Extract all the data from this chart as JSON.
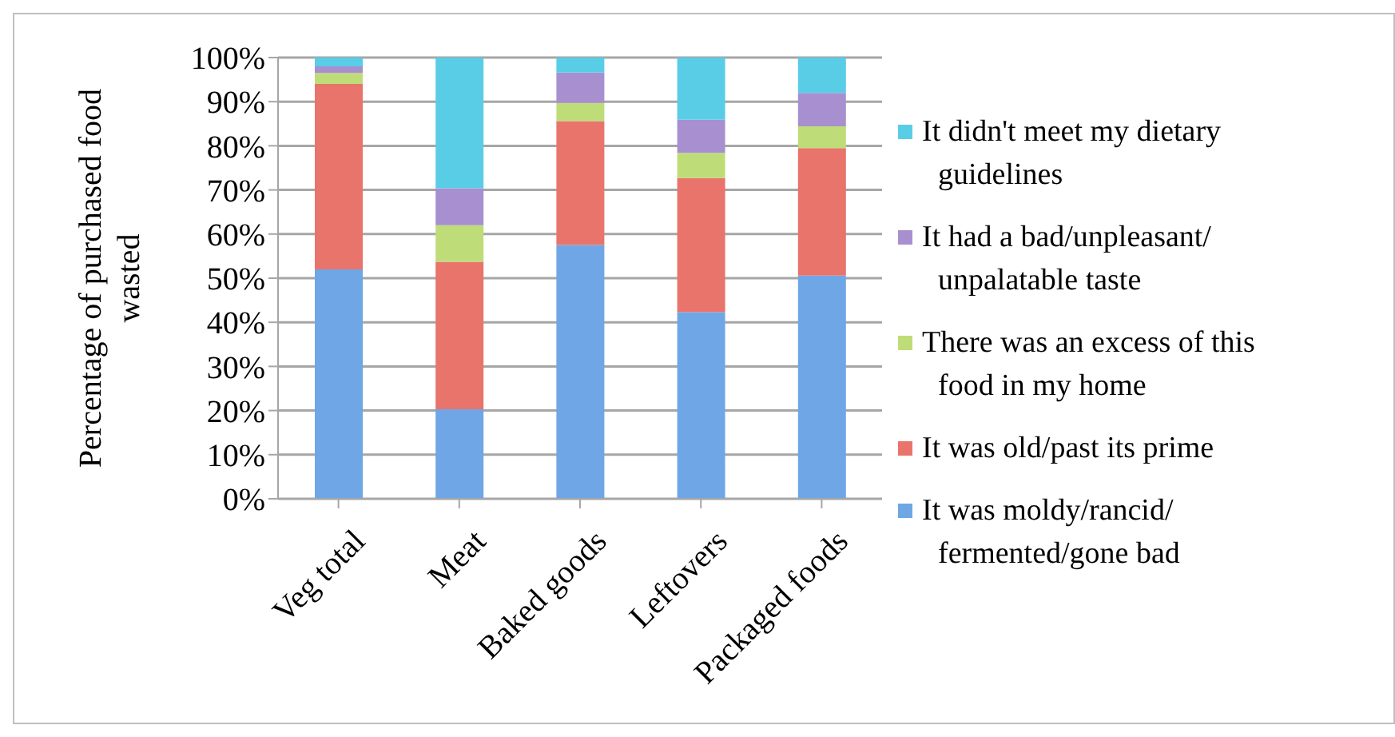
{
  "chart_data": {
    "type": "bar",
    "stacked": true,
    "ylabel": "Percentage of purchased food wasted",
    "categories": [
      "Veg total",
      "Meat",
      "Baked goods",
      "Leftovers",
      "Packaged foods"
    ],
    "series": [
      {
        "name": "It was moldy/rancid/ fermented/gone bad",
        "color": "#6fa6e6",
        "values": [
          52,
          20.3,
          57.5,
          42.3,
          50.6
        ]
      },
      {
        "name": "It was old/past its prime",
        "color": "#e8746c",
        "values": [
          42,
          33.4,
          28.1,
          30.4,
          28.9
        ]
      },
      {
        "name": "There was an excess of this food in my home",
        "color": "#bedd78",
        "values": [
          2.5,
          8.3,
          4.1,
          5.7,
          4.9
        ]
      },
      {
        "name": "It had a bad/unpleasant/ unpalatable taste",
        "color": "#a88fd0",
        "values": [
          1.5,
          8.4,
          6.9,
          7.5,
          7.6
        ]
      },
      {
        "name": "It didn't meet my dietary guidelines",
        "color": "#5acde6",
        "values": [
          2,
          29.6,
          3.4,
          14.1,
          8
        ]
      }
    ],
    "ylim": [
      0,
      100
    ],
    "yticks": [
      {
        "value": 0,
        "label": "0%"
      },
      {
        "value": 10,
        "label": "10%"
      },
      {
        "value": 20,
        "label": "20%"
      },
      {
        "value": 30,
        "label": "30%"
      },
      {
        "value": 40,
        "label": "40%"
      },
      {
        "value": 50,
        "label": "50%"
      },
      {
        "value": 60,
        "label": "60%"
      },
      {
        "value": 70,
        "label": "70%"
      },
      {
        "value": 80,
        "label": "80%"
      },
      {
        "value": 90,
        "label": "90%"
      },
      {
        "value": 100,
        "label": "100%"
      }
    ],
    "grid": "y",
    "legend": "right"
  }
}
